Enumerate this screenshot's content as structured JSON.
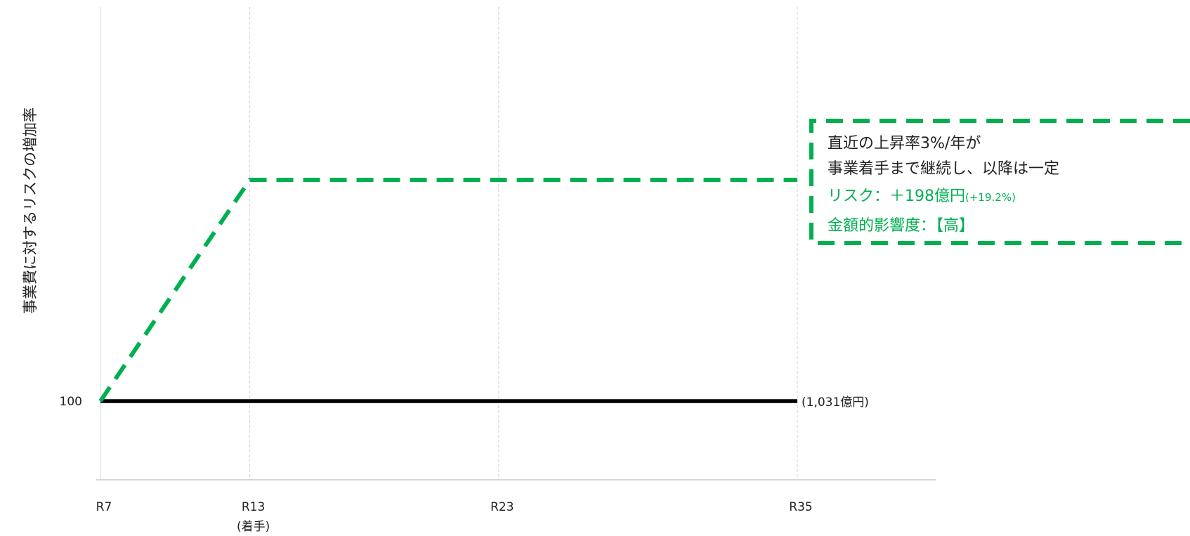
{
  "chart_data": {
    "type": "line",
    "ylabel": "事業費に対するリスクの増加率",
    "x_ticks": [
      {
        "value": 7,
        "label": "R7",
        "sub": ""
      },
      {
        "value": 13,
        "label": "R13",
        "sub": "(着手)"
      },
      {
        "value": 23,
        "label": "R23",
        "sub": ""
      },
      {
        "value": 35,
        "label": "R35",
        "sub": ""
      }
    ],
    "xlim": [
      7,
      35
    ],
    "y_ticks": [
      {
        "value": 100,
        "label": "100"
      }
    ],
    "ylim": [
      80,
      160
    ],
    "grid_x": true,
    "series": [
      {
        "color": "#000000",
        "style": "solid",
        "points": [
          [
            7,
            100
          ],
          [
            35,
            100
          ]
        ],
        "end_label": "(1,031億円)"
      },
      {
        "color": "#00b050",
        "style": "dashed",
        "points": [
          [
            7,
            100
          ],
          [
            13,
            119.2
          ],
          [
            35,
            119.2
          ]
        ]
      }
    ],
    "annotation": {
      "border_color": "#00b050",
      "lines": [
        {
          "text": "直近の上昇率3%/年が",
          "color": "#222222"
        },
        {
          "text": "事業着手まで継続し、以降は一定",
          "color": "#222222"
        },
        {
          "text": "リスク：＋198億円",
          "small": "(+19.2%)",
          "color": "#00b050"
        },
        {
          "text": "金額的影響度：【高】",
          "color": "#00b050"
        }
      ]
    }
  }
}
